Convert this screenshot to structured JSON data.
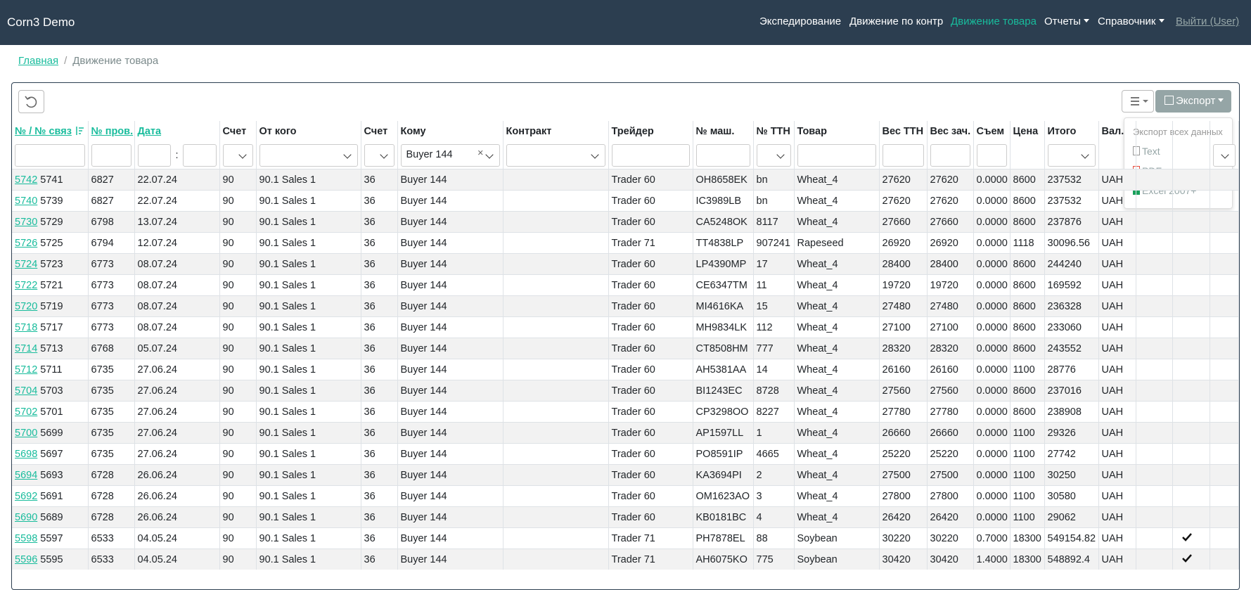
{
  "navbar": {
    "brand": "Corn3 Demo",
    "links": [
      "Экспедирование",
      "Движение по контр",
      "Движение товара",
      "Отчеты",
      "Справочник"
    ],
    "logout": "Выйти (User)"
  },
  "breadcrumb": {
    "home": "Главная",
    "current": "Движение товара"
  },
  "toolbar": {
    "export": "Экспорт",
    "menu": {
      "header": "Экспорт всех данных",
      "items": [
        "Text",
        "PDF",
        "Excel 2007+"
      ]
    }
  },
  "table": {
    "headers": [
      "№ / № связ",
      "№ пров.",
      "Дата",
      "Счет",
      "От кого",
      "Счет",
      "Кому",
      "Контракт",
      "Трейдер",
      "№ маш.",
      "№ ТТН",
      "Товар",
      "Вес ТТН",
      "Вес зач.",
      "Съем",
      "Цена",
      "Итого",
      "Вал."
    ],
    "filters": {
      "date_separator": ":",
      "to": "Buyer 144"
    },
    "rows": [
      {
        "cells": [
          "5742",
          "5741",
          "6827",
          "22.07.24",
          "90",
          "90.1 Sales 1",
          "36",
          "Buyer 144",
          "Trader 60",
          "OH8658EK",
          "bn",
          "Wheat_4",
          "27620",
          "27620",
          "0.0000",
          "8600",
          "237532",
          "UAH"
        ],
        "checked": false
      },
      {
        "cells": [
          "5740",
          "5739",
          "6827",
          "22.07.24",
          "90",
          "90.1 Sales 1",
          "36",
          "Buyer 144",
          "Trader 60",
          "IC3989LB",
          "bn",
          "Wheat_4",
          "27620",
          "27620",
          "0.0000",
          "8600",
          "237532",
          "UAH"
        ],
        "checked": false
      },
      {
        "cells": [
          "5730",
          "5729",
          "6798",
          "13.07.24",
          "90",
          "90.1 Sales 1",
          "36",
          "Buyer 144",
          "Trader 60",
          "CA5248OK",
          "8117",
          "Wheat_4",
          "27660",
          "27660",
          "0.0000",
          "8600",
          "237876",
          "UAH"
        ],
        "checked": false
      },
      {
        "cells": [
          "5726",
          "5725",
          "6794",
          "12.07.24",
          "90",
          "90.1 Sales 1",
          "36",
          "Buyer 144",
          "Trader 71",
          "TT4838LP",
          "907241",
          "Rapeseed",
          "26920",
          "26920",
          "0.0000",
          "1118",
          "30096.56",
          "UAH"
        ],
        "checked": false
      },
      {
        "cells": [
          "5724",
          "5723",
          "6773",
          "08.07.24",
          "90",
          "90.1 Sales 1",
          "36",
          "Buyer 144",
          "Trader 60",
          "LP4390MP",
          "17",
          "Wheat_4",
          "28400",
          "28400",
          "0.0000",
          "8600",
          "244240",
          "UAH"
        ],
        "checked": false
      },
      {
        "cells": [
          "5722",
          "5721",
          "6773",
          "08.07.24",
          "90",
          "90.1 Sales 1",
          "36",
          "Buyer 144",
          "Trader 60",
          "CE6347TM",
          "11",
          "Wheat_4",
          "19720",
          "19720",
          "0.0000",
          "8600",
          "169592",
          "UAH"
        ],
        "checked": false
      },
      {
        "cells": [
          "5720",
          "5719",
          "6773",
          "08.07.24",
          "90",
          "90.1 Sales 1",
          "36",
          "Buyer 144",
          "Trader 60",
          "MI4616KA",
          "15",
          "Wheat_4",
          "27480",
          "27480",
          "0.0000",
          "8600",
          "236328",
          "UAH"
        ],
        "checked": false
      },
      {
        "cells": [
          "5718",
          "5717",
          "6773",
          "08.07.24",
          "90",
          "90.1 Sales 1",
          "36",
          "Buyer 144",
          "Trader 60",
          "MH9834LK",
          "112",
          "Wheat_4",
          "27100",
          "27100",
          "0.0000",
          "8600",
          "233060",
          "UAH"
        ],
        "checked": false
      },
      {
        "cells": [
          "5714",
          "5713",
          "6768",
          "05.07.24",
          "90",
          "90.1 Sales 1",
          "36",
          "Buyer 144",
          "Trader 60",
          "CT8508HM",
          "777",
          "Wheat_4",
          "28320",
          "28320",
          "0.0000",
          "8600",
          "243552",
          "UAH"
        ],
        "checked": false
      },
      {
        "cells": [
          "5712",
          "5711",
          "6735",
          "27.06.24",
          "90",
          "90.1 Sales 1",
          "36",
          "Buyer 144",
          "Trader 60",
          "AH5381AA",
          "14",
          "Wheat_4",
          "26160",
          "26160",
          "0.0000",
          "1100",
          "28776",
          "UAH"
        ],
        "checked": false
      },
      {
        "cells": [
          "5704",
          "5703",
          "6735",
          "27.06.24",
          "90",
          "90.1 Sales 1",
          "36",
          "Buyer 144",
          "Trader 60",
          "BI1243EC",
          "8728",
          "Wheat_4",
          "27560",
          "27560",
          "0.0000",
          "8600",
          "237016",
          "UAH"
        ],
        "checked": false
      },
      {
        "cells": [
          "5702",
          "5701",
          "6735",
          "27.06.24",
          "90",
          "90.1 Sales 1",
          "36",
          "Buyer 144",
          "Trader 60",
          "CP3298OO",
          "8227",
          "Wheat_4",
          "27780",
          "27780",
          "0.0000",
          "8600",
          "238908",
          "UAH"
        ],
        "checked": false
      },
      {
        "cells": [
          "5700",
          "5699",
          "6735",
          "27.06.24",
          "90",
          "90.1 Sales 1",
          "36",
          "Buyer 144",
          "Trader 60",
          "AP1597LL",
          "1",
          "Wheat_4",
          "26660",
          "26660",
          "0.0000",
          "1100",
          "29326",
          "UAH"
        ],
        "checked": false
      },
      {
        "cells": [
          "5698",
          "5697",
          "6735",
          "27.06.24",
          "90",
          "90.1 Sales 1",
          "36",
          "Buyer 144",
          "Trader 60",
          "PO8591IP",
          "4665",
          "Wheat_4",
          "25220",
          "25220",
          "0.0000",
          "1100",
          "27742",
          "UAH"
        ],
        "checked": false
      },
      {
        "cells": [
          "5694",
          "5693",
          "6728",
          "26.06.24",
          "90",
          "90.1 Sales 1",
          "36",
          "Buyer 144",
          "Trader 60",
          "KA3694PI",
          "2",
          "Wheat_4",
          "27500",
          "27500",
          "0.0000",
          "1100",
          "30250",
          "UAH"
        ],
        "checked": false
      },
      {
        "cells": [
          "5692",
          "5691",
          "6728",
          "26.06.24",
          "90",
          "90.1 Sales 1",
          "36",
          "Buyer 144",
          "Trader 60",
          "OM1623AO",
          "3",
          "Wheat_4",
          "27800",
          "27800",
          "0.0000",
          "1100",
          "30580",
          "UAH"
        ],
        "checked": false
      },
      {
        "cells": [
          "5690",
          "5689",
          "6728",
          "26.06.24",
          "90",
          "90.1 Sales 1",
          "36",
          "Buyer 144",
          "Trader 60",
          "KB0181BC",
          "4",
          "Wheat_4",
          "26420",
          "26420",
          "0.0000",
          "1100",
          "29062",
          "UAH"
        ],
        "checked": false
      },
      {
        "cells": [
          "5598",
          "5597",
          "6533",
          "04.05.24",
          "90",
          "90.1 Sales 1",
          "36",
          "Buyer 144",
          "Trader 71",
          "PH7878EL",
          "88",
          "Soybean",
          "30220",
          "30220",
          "0.7000",
          "18300",
          "549154.82",
          "UAH"
        ],
        "checked": true
      },
      {
        "cells": [
          "5596",
          "5595",
          "6533",
          "04.05.24",
          "90",
          "90.1 Sales 1",
          "36",
          "Buyer 144",
          "Trader 71",
          "AH6075KO",
          "775",
          "Soybean",
          "30420",
          "30420",
          "1.4000",
          "18300",
          "548892.4",
          "UAH"
        ],
        "checked": true
      }
    ]
  }
}
